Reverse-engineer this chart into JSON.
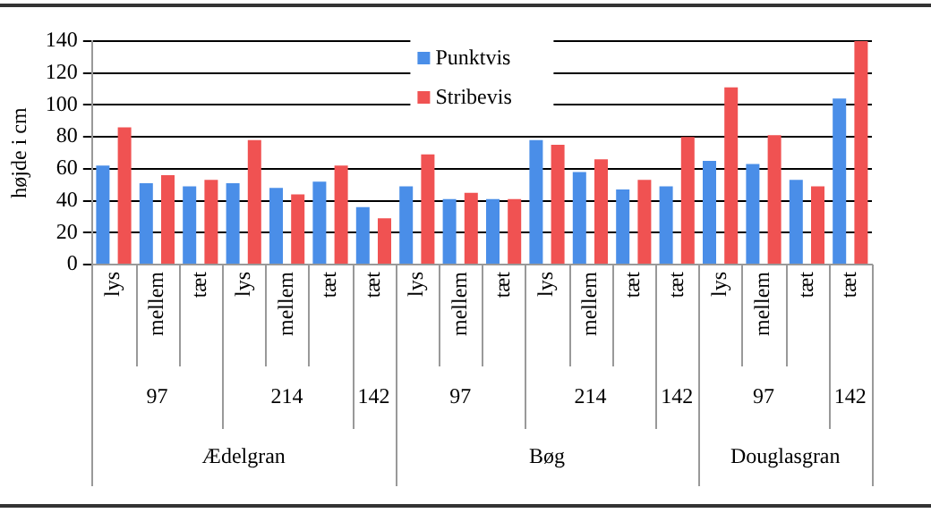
{
  "chart_data": {
    "type": "bar",
    "ylabel": "højde i cm",
    "categories": [
      "lys",
      "mellem",
      "tæt",
      "lys",
      "mellem",
      "tæt",
      "tæt",
      "lys",
      "mellem",
      "tæt",
      "lys",
      "mellem",
      "tæt",
      "tæt",
      "lys",
      "mellem",
      "tæt",
      "tæt"
    ],
    "series": [
      {
        "name": "Punktvis",
        "color": "#4a8ee8",
        "values": [
          62,
          51,
          49,
          51,
          48,
          52,
          36,
          49,
          41,
          41,
          78,
          58,
          47,
          49,
          65,
          63,
          53,
          104
        ]
      },
      {
        "name": "Stribevis",
        "color": "#f05252",
        "values": [
          86,
          56,
          53,
          78,
          44,
          62,
          29,
          69,
          45,
          41,
          75,
          66,
          53,
          80,
          111,
          81,
          49,
          140
        ]
      }
    ],
    "annotations": [
      "97",
      "214",
      "142",
      "97",
      "214",
      "142",
      "97",
      "142",
      "Ædelgran",
      "Bøg",
      "Douglasgran"
    ],
    "ylim": [
      0,
      140
    ],
    "yticks": [
      0,
      20,
      40,
      60,
      80,
      100,
      120,
      140
    ],
    "grid": "y",
    "legend": "top"
  }
}
